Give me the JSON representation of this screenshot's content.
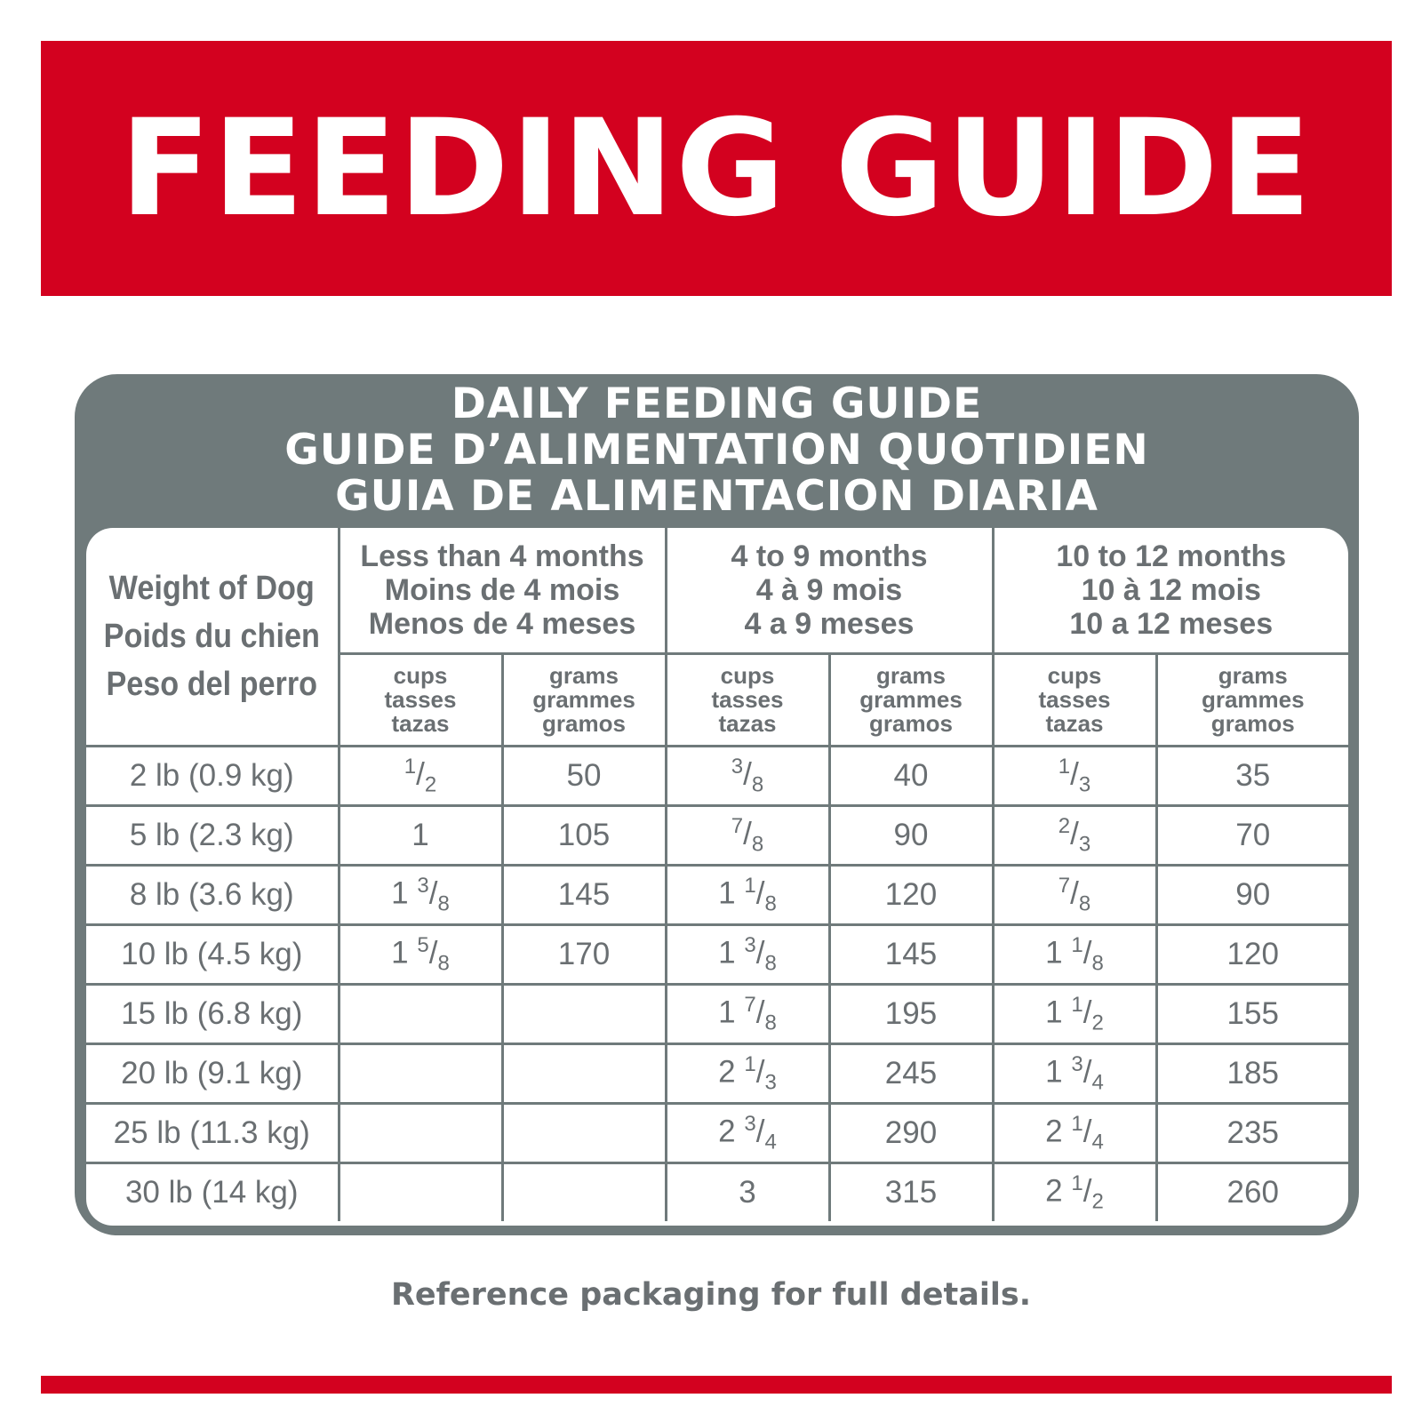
{
  "banner": {
    "title": "FEEDING GUIDE"
  },
  "panel": {
    "heading": [
      "DAILY FEEDING GUIDE",
      "GUIDE D’ALIMENTATION QUOTIDIEN",
      "GUIA DE ALIMENTACION DIARIA"
    ]
  },
  "table": {
    "weight_header": [
      "Weight of Dog",
      "Poids du chien",
      "Peso del perro"
    ],
    "age_groups": [
      {
        "lines": [
          "Less than 4 months",
          "Moins de 4 mois",
          "Menos de 4 meses"
        ]
      },
      {
        "lines": [
          "4 to 9 months",
          "4 à 9 mois",
          "4 a 9 meses"
        ]
      },
      {
        "lines": [
          "10 to 12 months",
          "10 à 12 mois",
          "10 a 12 meses"
        ]
      }
    ],
    "unit_cups": [
      "cups",
      "tasses",
      "tazas"
    ],
    "unit_grams": [
      "grams",
      "grammes",
      "gramos"
    ],
    "rows": [
      [
        "2 lb (0.9 kg)",
        "1/2",
        "50",
        "3/8",
        "40",
        "1/3",
        "35"
      ],
      [
        "5 lb (2.3 kg)",
        "1",
        "105",
        "7/8",
        "90",
        "2/3",
        "70"
      ],
      [
        "8 lb (3.6 kg)",
        "1 3/8",
        "145",
        "1 1/8",
        "120",
        "7/8",
        "90"
      ],
      [
        "10 lb (4.5 kg)",
        "1 5/8",
        "170",
        "1 3/8",
        "145",
        "1 1/8",
        "120"
      ],
      [
        "15 lb (6.8 kg)",
        "",
        "",
        "1 7/8",
        "195",
        "1 1/2",
        "155"
      ],
      [
        "20 lb (9.1 kg)",
        "",
        "",
        "2 1/3",
        "245",
        "1 3/4",
        "185"
      ],
      [
        "25 lb (11.3 kg)",
        "",
        "",
        "2 3/4",
        "290",
        "2 1/4",
        "235"
      ],
      [
        "30 lb (14 kg)",
        "",
        "",
        "3",
        "315",
        "2 1/2",
        "260"
      ]
    ]
  },
  "footnote": "Reference packaging for full details.",
  "colors": {
    "brand_red": "#d3011f",
    "panel_gray": "#6f7a7b",
    "text_gray": "#6a6f72"
  }
}
